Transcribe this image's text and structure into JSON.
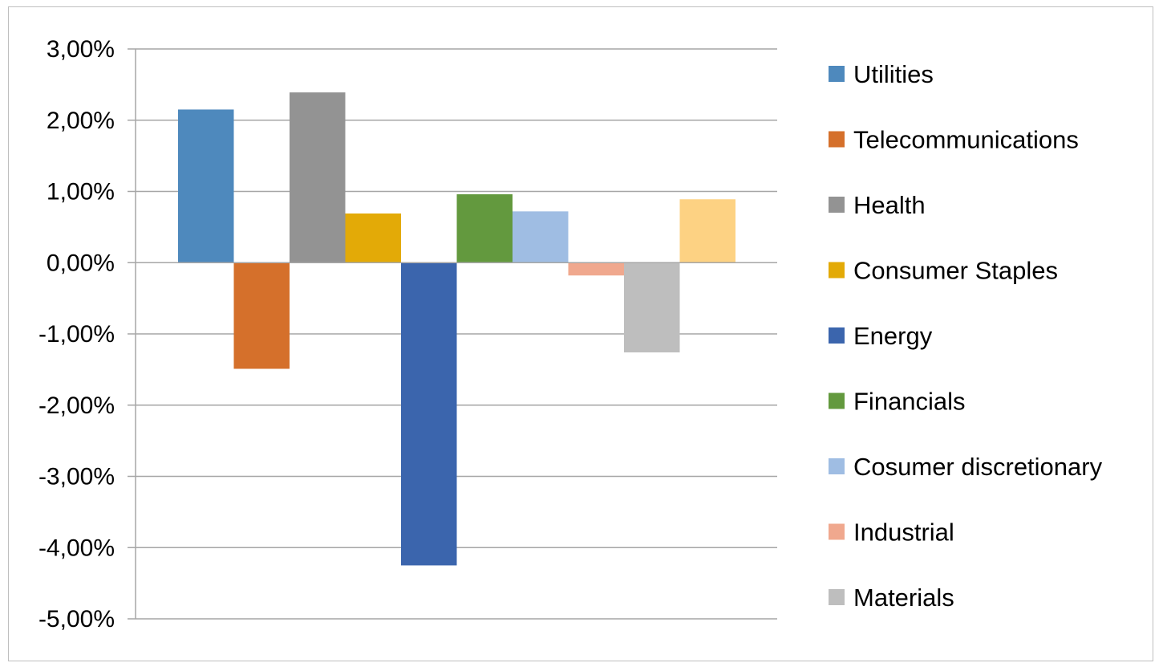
{
  "chart_data": {
    "type": "bar",
    "title": "",
    "xlabel": "",
    "ylabel": "",
    "ylim": [
      -5,
      3
    ],
    "y_ticks": [
      3,
      2,
      1,
      0,
      -1,
      -2,
      -3,
      -4,
      -5
    ],
    "y_tick_labels": [
      "3,00%",
      "2,00%",
      "1,00%",
      "0,00%",
      "-1,00%",
      "-2,00%",
      "-3,00%",
      "-4,00%",
      "-5,00%"
    ],
    "grid": true,
    "legend_position": "right",
    "series": [
      {
        "name": "Utilities",
        "value": 2.15,
        "color": "#4e89bd"
      },
      {
        "name": "Telecommunications",
        "value": -1.49,
        "color": "#d5702b"
      },
      {
        "name": "Health",
        "value": 2.39,
        "color": "#939393"
      },
      {
        "name": "Consumer Staples",
        "value": 0.69,
        "color": "#e3aa07"
      },
      {
        "name": "Energy",
        "value": -4.25,
        "color": "#3b65ad"
      },
      {
        "name": "Financials",
        "value": 0.96,
        "color": "#63993e"
      },
      {
        "name": "Cosumer discretionary",
        "value": 0.72,
        "color": "#9fbde3"
      },
      {
        "name": "Industrial",
        "value": -0.18,
        "color": "#f0a88e"
      },
      {
        "name": "Materials",
        "value": -1.26,
        "color": "#bebebe"
      },
      {
        "name": "",
        "value": 0.89,
        "color": "#fdd283"
      }
    ]
  }
}
